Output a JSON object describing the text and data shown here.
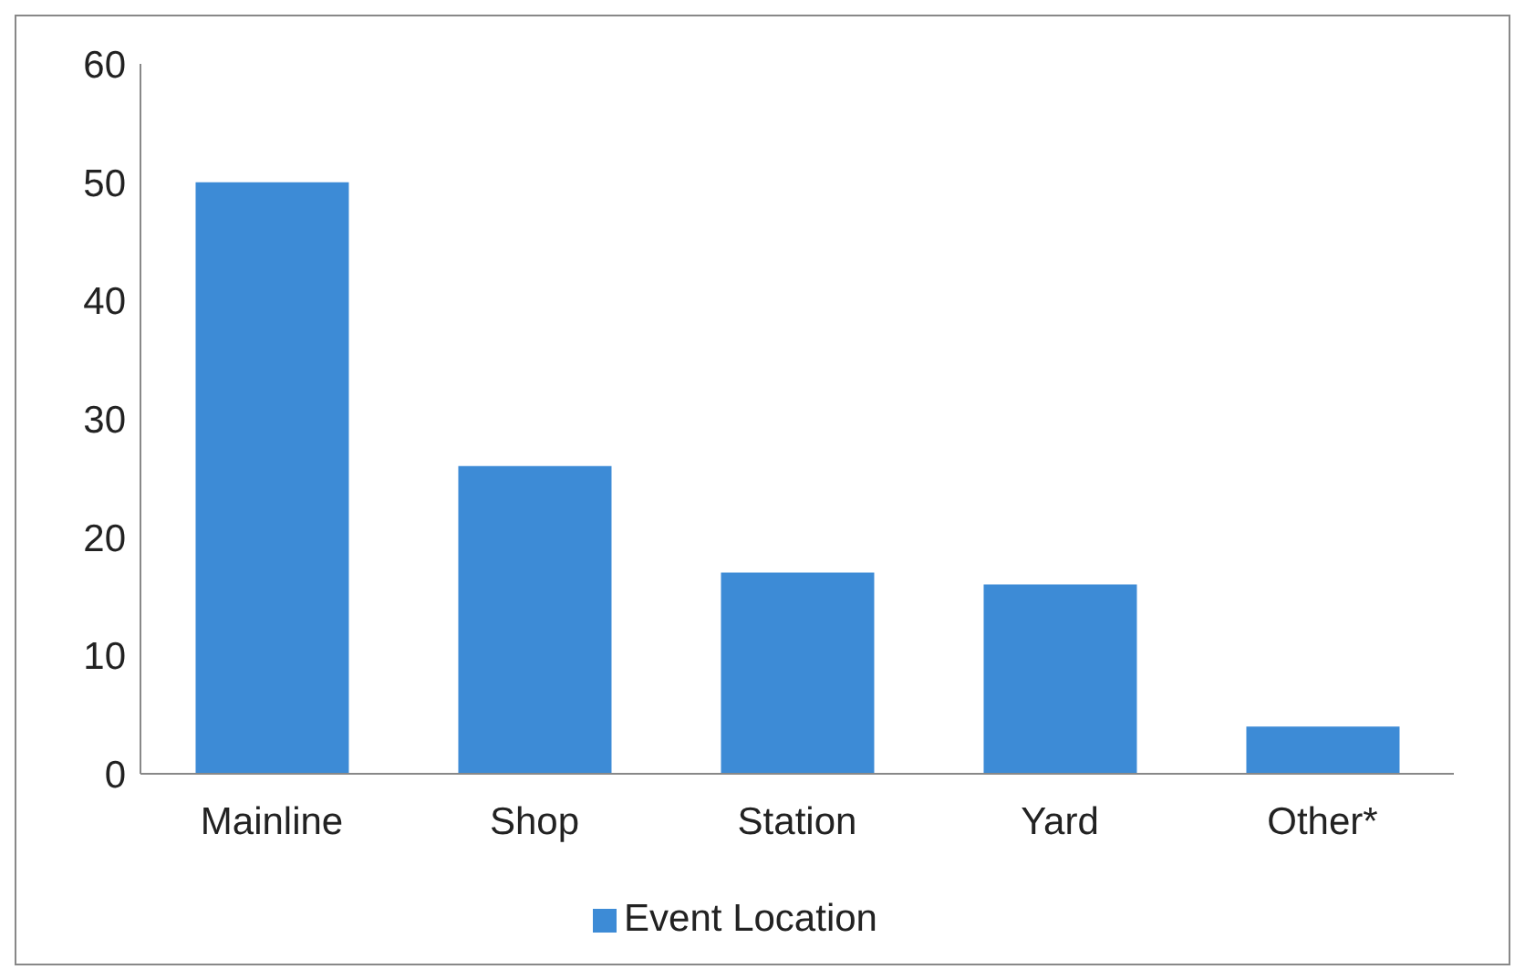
{
  "chart_data": {
    "type": "bar",
    "categories": [
      "Mainline",
      "Shop",
      "Station",
      "Yard",
      "Other*"
    ],
    "series": [
      {
        "name": "Event Location",
        "color": "#3d8bd6",
        "values": [
          50,
          26,
          17,
          16,
          4
        ]
      }
    ],
    "ylim": [
      0,
      60
    ],
    "yticks": [
      0,
      10,
      20,
      30,
      40,
      50,
      60
    ],
    "grid": false,
    "legend": "bottom"
  }
}
